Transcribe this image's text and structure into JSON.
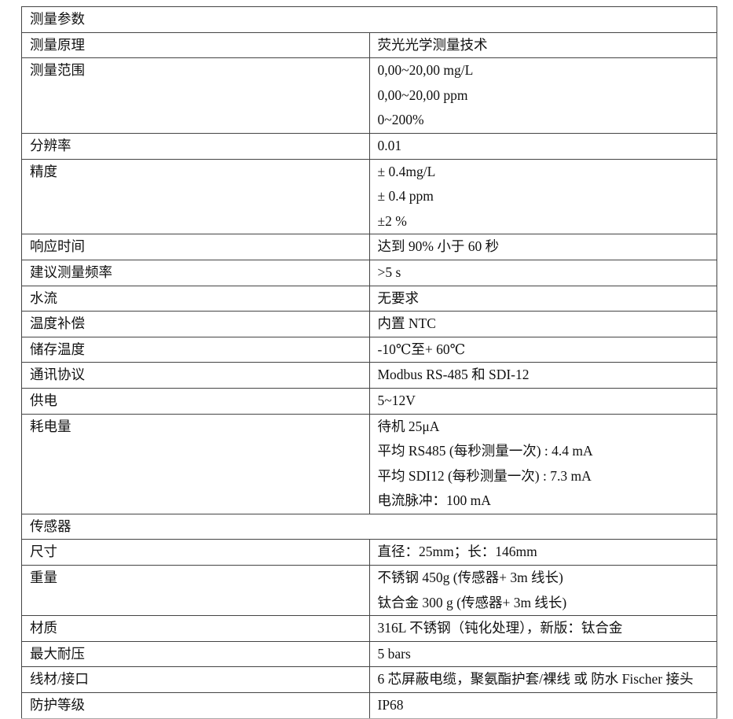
{
  "sections": [
    {
      "title": "测量参数",
      "rows": [
        {
          "label": "测量原理",
          "values": [
            "荧光光学测量技术"
          ]
        },
        {
          "label": "测量范围",
          "values": [
            "0,00~20,00 mg/L",
            "0,00~20,00 ppm",
            "0~200%"
          ]
        },
        {
          "label": "分辨率",
          "values": [
            "0.01"
          ]
        },
        {
          "label": "精度",
          "values": [
            "± 0.4mg/L",
            "± 0.4 ppm",
            "±2 %"
          ]
        },
        {
          "label": "响应时间",
          "values": [
            "达到 90% 小于 60 秒"
          ]
        },
        {
          "label": "建议测量频率",
          "values": [
            ">5 s"
          ]
        },
        {
          "label": "水流",
          "values": [
            "无要求"
          ]
        },
        {
          "label": "温度补偿",
          "values": [
            "内置 NTC"
          ]
        },
        {
          "label": "储存温度",
          "values": [
            "-10℃至+ 60℃"
          ]
        },
        {
          "label": "通讯协议",
          "values": [
            "Modbus RS-485 和 SDI-12"
          ]
        },
        {
          "label": "供电",
          "values": [
            "5~12V"
          ]
        },
        {
          "label": "耗电量",
          "values": [
            "待机 25μA",
            "平均 RS485 (每秒测量一次) : 4.4 mA",
            "平均 SDI12 (每秒测量一次) : 7.3 mA",
            "电流脉冲：100 mA"
          ]
        }
      ]
    },
    {
      "title": "传感器",
      "rows": [
        {
          "label": "尺寸",
          "values": [
            "直径：25mm；长：146mm"
          ]
        },
        {
          "label": "重量",
          "values": [
            "不锈钢 450g (传感器+ 3m 线长)",
            "钛合金 300 g (传感器+ 3m 线长)"
          ]
        },
        {
          "label": "材质",
          "values": [
            "316L 不锈钢（钝化处理），新版：钛合金"
          ]
        },
        {
          "label": "最大耐压",
          "values": [
            "5 bars"
          ]
        },
        {
          "label": "线材/接口",
          "values": [
            "6 芯屏蔽电缆，聚氨酯护套/裸线 或 防水 Fischer 接头"
          ]
        },
        {
          "label": "防护等级",
          "values": [
            "IP68"
          ]
        }
      ]
    }
  ]
}
